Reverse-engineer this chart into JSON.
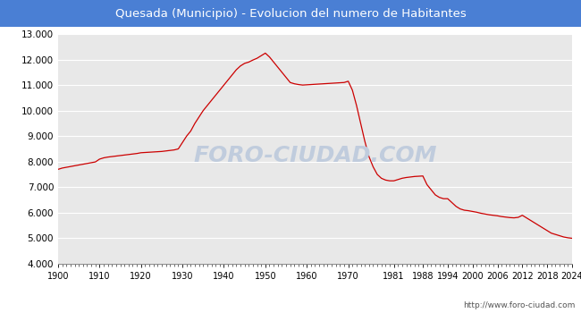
{
  "title": "Quesada (Municipio) - Evolucion del numero de Habitantes",
  "title_bg_color": "#4a7fd4",
  "title_text_color": "#ffffff",
  "plot_bg_color": "#e8e8e8",
  "outer_bg_color": "#ffffff",
  "line_color": "#cc0000",
  "watermark_text": "FORO-CIUDAD.COM",
  "watermark_color": "#c0ccdd",
  "url_text": "http://www.foro-ciudad.com",
  "ylim": [
    4000,
    13000
  ],
  "ytick_step": 1000,
  "x_years": [
    1900,
    1910,
    1920,
    1930,
    1940,
    1950,
    1960,
    1970,
    1981,
    1988,
    1994,
    2000,
    2006,
    2012,
    2018,
    2024
  ],
  "data": [
    [
      1900,
      7700
    ],
    [
      1901,
      7750
    ],
    [
      1902,
      7780
    ],
    [
      1903,
      7810
    ],
    [
      1904,
      7840
    ],
    [
      1905,
      7870
    ],
    [
      1906,
      7900
    ],
    [
      1907,
      7930
    ],
    [
      1908,
      7960
    ],
    [
      1909,
      7990
    ],
    [
      1910,
      8100
    ],
    [
      1911,
      8150
    ],
    [
      1912,
      8180
    ],
    [
      1913,
      8200
    ],
    [
      1914,
      8220
    ],
    [
      1915,
      8240
    ],
    [
      1916,
      8260
    ],
    [
      1917,
      8280
    ],
    [
      1918,
      8300
    ],
    [
      1919,
      8320
    ],
    [
      1920,
      8350
    ],
    [
      1921,
      8360
    ],
    [
      1922,
      8370
    ],
    [
      1923,
      8380
    ],
    [
      1924,
      8390
    ],
    [
      1925,
      8400
    ],
    [
      1926,
      8420
    ],
    [
      1927,
      8440
    ],
    [
      1928,
      8460
    ],
    [
      1929,
      8500
    ],
    [
      1930,
      8750
    ],
    [
      1931,
      9000
    ],
    [
      1932,
      9200
    ],
    [
      1933,
      9500
    ],
    [
      1934,
      9750
    ],
    [
      1935,
      10000
    ],
    [
      1936,
      10200
    ],
    [
      1937,
      10400
    ],
    [
      1938,
      10600
    ],
    [
      1939,
      10800
    ],
    [
      1940,
      11000
    ],
    [
      1941,
      11200
    ],
    [
      1942,
      11400
    ],
    [
      1943,
      11600
    ],
    [
      1944,
      11750
    ],
    [
      1945,
      11850
    ],
    [
      1946,
      11900
    ],
    [
      1947,
      11980
    ],
    [
      1948,
      12050
    ],
    [
      1949,
      12150
    ],
    [
      1950,
      12250
    ],
    [
      1951,
      12100
    ],
    [
      1952,
      11900
    ],
    [
      1953,
      11700
    ],
    [
      1954,
      11500
    ],
    [
      1955,
      11300
    ],
    [
      1956,
      11100
    ],
    [
      1957,
      11050
    ],
    [
      1958,
      11020
    ],
    [
      1959,
      11000
    ],
    [
      1960,
      11010
    ],
    [
      1961,
      11020
    ],
    [
      1962,
      11030
    ],
    [
      1963,
      11040
    ],
    [
      1964,
      11050
    ],
    [
      1965,
      11060
    ],
    [
      1966,
      11070
    ],
    [
      1967,
      11080
    ],
    [
      1968,
      11090
    ],
    [
      1969,
      11100
    ],
    [
      1970,
      11150
    ],
    [
      1971,
      10800
    ],
    [
      1972,
      10200
    ],
    [
      1973,
      9500
    ],
    [
      1974,
      8800
    ],
    [
      1975,
      8200
    ],
    [
      1976,
      7800
    ],
    [
      1977,
      7500
    ],
    [
      1978,
      7350
    ],
    [
      1979,
      7280
    ],
    [
      1980,
      7250
    ],
    [
      1981,
      7250
    ],
    [
      1982,
      7300
    ],
    [
      1983,
      7350
    ],
    [
      1984,
      7380
    ],
    [
      1985,
      7400
    ],
    [
      1986,
      7420
    ],
    [
      1987,
      7430
    ],
    [
      1988,
      7440
    ],
    [
      1989,
      7100
    ],
    [
      1990,
      6900
    ],
    [
      1991,
      6700
    ],
    [
      1992,
      6600
    ],
    [
      1993,
      6550
    ],
    [
      1994,
      6550
    ],
    [
      1995,
      6400
    ],
    [
      1996,
      6250
    ],
    [
      1997,
      6150
    ],
    [
      1998,
      6100
    ],
    [
      1999,
      6080
    ],
    [
      2000,
      6050
    ],
    [
      2001,
      6020
    ],
    [
      2002,
      5980
    ],
    [
      2003,
      5950
    ],
    [
      2004,
      5920
    ],
    [
      2005,
      5900
    ],
    [
      2006,
      5880
    ],
    [
      2007,
      5850
    ],
    [
      2008,
      5830
    ],
    [
      2009,
      5810
    ],
    [
      2010,
      5800
    ],
    [
      2011,
      5820
    ],
    [
      2012,
      5900
    ],
    [
      2013,
      5800
    ],
    [
      2014,
      5700
    ],
    [
      2015,
      5600
    ],
    [
      2016,
      5500
    ],
    [
      2017,
      5400
    ],
    [
      2018,
      5300
    ],
    [
      2019,
      5200
    ],
    [
      2020,
      5150
    ],
    [
      2021,
      5100
    ],
    [
      2022,
      5050
    ],
    [
      2023,
      5020
    ],
    [
      2024,
      5000
    ]
  ]
}
